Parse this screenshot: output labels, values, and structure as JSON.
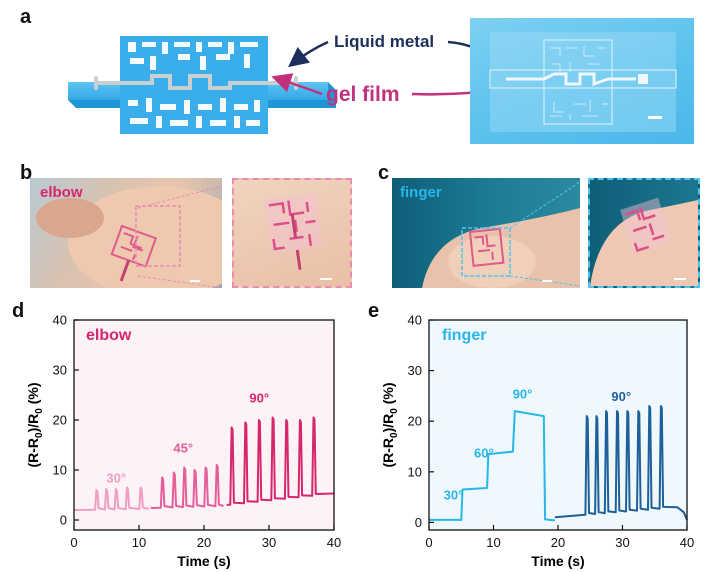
{
  "figure": {
    "panels": {
      "a": "a",
      "b": "b",
      "c": "c",
      "d": "d",
      "e": "e"
    },
    "panel_a": {
      "label_liquid_metal": "Liquid metal",
      "label_gel_film": "gel film"
    },
    "panel_b": {
      "tag": "elbow"
    },
    "panel_c": {
      "tag": "finger"
    }
  },
  "colors": {
    "elbow": "#d6266e",
    "elbow_light": "#ef9fc3",
    "elbow_mid": "#e45f9a",
    "finger": "#29b6ea",
    "finger_dark": "#1f5f9a",
    "navy": "#1e2f5c",
    "film": "#39aeea"
  },
  "chart_data": [
    {
      "type": "line",
      "panel": "d",
      "tag": "elbow",
      "xlabel": "Time (s)",
      "ylabel": "(R-R0)/R0 (%)",
      "xlim": [
        0,
        40
      ],
      "ylim": [
        -2,
        40
      ],
      "xticks": [
        0,
        10,
        20,
        30,
        40
      ],
      "yticks": [
        0,
        10,
        20,
        30,
        40
      ],
      "background": "#fdf2f6",
      "annotations": [
        {
          "text": "30°",
          "x": 6.5,
          "y": 7.5
        },
        {
          "text": "45°",
          "x": 16.8,
          "y": 13.5
        },
        {
          "text": "90°",
          "x": 28.5,
          "y": 23.5
        }
      ],
      "series": [
        {
          "color_key": "elbow_light",
          "peaks": {
            "t": [
              3.5,
              5.0,
              6.5,
              8.2,
              10.3
            ],
            "h": [
              6.0,
              6.2,
              6.2,
              6.5,
              6.5
            ]
          },
          "baseline": [
            [
              0,
              2
            ],
            [
              11.5,
              2.2
            ]
          ]
        },
        {
          "color_key": "elbow_mid",
          "peaks": {
            "t": [
              13.6,
              15.4,
              17.0,
              18.6,
              20.3,
              22.0
            ],
            "h": [
              8.5,
              9.5,
              10.5,
              10.0,
              10.5,
              11.0
            ]
          },
          "baseline": [
            [
              11.8,
              2.4
            ],
            [
              23.0,
              2.8
            ]
          ]
        },
        {
          "color_key": "elbow",
          "peaks": {
            "t": [
              24.3,
              26.4,
              28.5,
              30.6,
              32.7,
              34.8,
              36.9
            ],
            "h": [
              18.5,
              19.5,
              20.0,
              20.5,
              20.0,
              20.0,
              20.5
            ]
          },
          "baseline": [
            [
              23.5,
              3.0
            ],
            [
              40,
              5.3
            ]
          ]
        }
      ]
    },
    {
      "type": "line",
      "panel": "e",
      "tag": "finger",
      "xlabel": "Time (s)",
      "ylabel": "(R-R0)/R0 (%)",
      "xlim": [
        0,
        40
      ],
      "ylim": [
        -1.5,
        40
      ],
      "xticks": [
        0,
        10,
        20,
        30,
        40
      ],
      "yticks": [
        0,
        10,
        20,
        30,
        40
      ],
      "background": "#eef8fd",
      "annotations": [
        {
          "text": "30°",
          "x": 3.8,
          "y": 4.5
        },
        {
          "text": "60°",
          "x": 8.5,
          "y": 12.8
        },
        {
          "text": "90°",
          "x": 14.5,
          "y": 24.5
        },
        {
          "text": "90°",
          "x": 29.8,
          "y": 24.0
        }
      ],
      "series": [
        {
          "color_key": "finger",
          "steps": [
            [
              0,
              0.5
            ],
            [
              5,
              0.5
            ],
            [
              5.2,
              6.5
            ],
            [
              9,
              6.8
            ],
            [
              9.2,
              13.5
            ],
            [
              13,
              14.0
            ],
            [
              13.3,
              22.0
            ],
            [
              17.8,
              21.0
            ],
            [
              18.0,
              0.6
            ],
            [
              19.5,
              0.4
            ]
          ]
        },
        {
          "color_key": "finger_dark",
          "peaks": {
            "t": [
              24.5,
              26.0,
              27.5,
              29.2,
              30.8,
              32.5,
              34.2,
              36.0
            ],
            "h": [
              21.0,
              21.0,
              22.0,
              22.0,
              22.0,
              22.0,
              23.0,
              23.0
            ]
          },
          "baseline": [
            [
              19.5,
              1.0
            ],
            [
              38.5,
              3.0
            ]
          ],
          "tail": [
            [
              39.5,
              2.0
            ],
            [
              40,
              0.5
            ]
          ]
        }
      ]
    }
  ]
}
